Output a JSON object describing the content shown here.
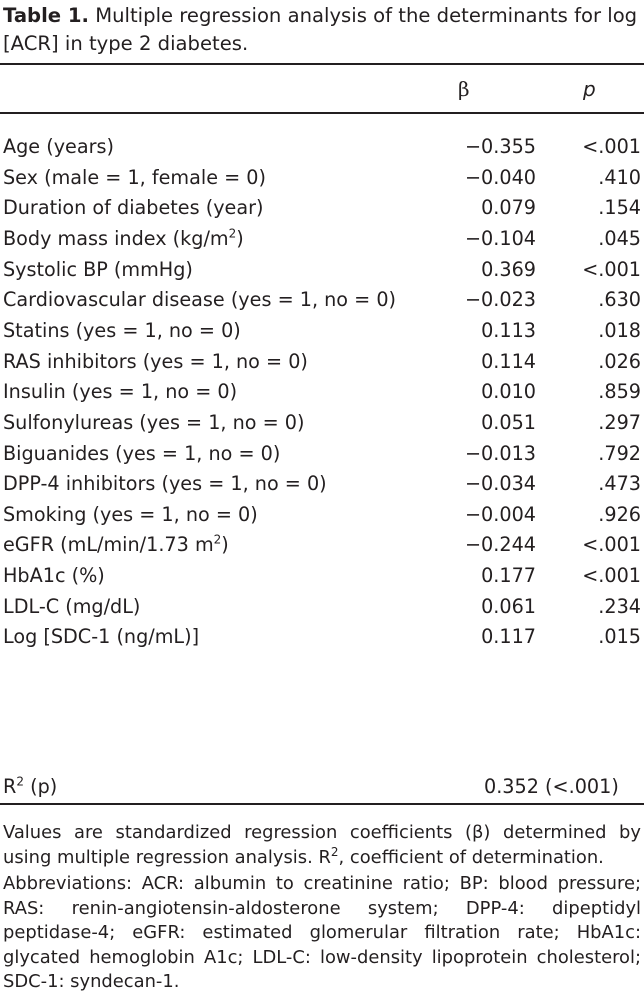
{
  "caption": {
    "label": "Table 1.",
    "text": "Multiple regression analysis of the determinants for log [ACR] in type 2 diabetes."
  },
  "header": {
    "beta": "β",
    "p": "p"
  },
  "rows": [
    {
      "variable": "Age (years)",
      "beta": "−0.355",
      "p": "<.001"
    },
    {
      "variable": "Sex (male = 1, female = 0)",
      "beta": "−0.040",
      "p": ".410"
    },
    {
      "variable": "Duration of diabetes (year)",
      "beta": "0.079",
      "p": ".154"
    },
    {
      "variable": "Body mass index (kg/m",
      "sup": "2",
      "tail": ")",
      "beta": "−0.104",
      "p": ".045"
    },
    {
      "variable": "Systolic BP (mmHg)",
      "beta": "0.369",
      "p": "<.001"
    },
    {
      "variable": "Cardiovascular disease (yes = 1, no = 0)",
      "beta": "−0.023",
      "p": ".630"
    },
    {
      "variable": "Statins (yes = 1, no = 0)",
      "beta": "0.113",
      "p": ".018"
    },
    {
      "variable": "RAS inhibitors (yes = 1, no = 0)",
      "beta": "0.114",
      "p": ".026"
    },
    {
      "variable": "Insulin (yes = 1, no = 0)",
      "beta": "0.010",
      "p": ".859"
    },
    {
      "variable": "Sulfonylureas (yes = 1, no = 0)",
      "beta": "0.051",
      "p": ".297"
    },
    {
      "variable": "Biguanides (yes = 1, no = 0)",
      "beta": "−0.013",
      "p": ".792"
    },
    {
      "variable": "DPP-4 inhibitors (yes = 1, no = 0)",
      "beta": "−0.034",
      "p": ".473"
    },
    {
      "variable": "Smoking (yes = 1, no = 0)",
      "beta": "−0.004",
      "p": ".926"
    },
    {
      "variable": "eGFR (mL/min/1.73 m",
      "sup": "2",
      "tail": ")",
      "beta": "−0.244",
      "p": "<.001"
    },
    {
      "variable": "HbA1c (%)",
      "beta": "0.177",
      "p": "<.001"
    },
    {
      "variable": "LDL-C (mg/dL)",
      "beta": "0.061",
      "p": ".234"
    },
    {
      "variable": "Log [SDC-1 (ng/mL)]",
      "beta": "0.117",
      "p": ".015"
    }
  ],
  "r2": {
    "label": "R",
    "sup": "2",
    "label_tail": " (p)",
    "value": "0.352 (<.001)"
  },
  "notes": {
    "values_pre": "Values are standardized regression coefficients (β) determined by using multiple regression analysis. R",
    "values_sup": "2",
    "values_post": ", coefficient of determination.",
    "abbreviations": "Abbreviations: ACR: albumin to creatinine ratio; BP: blood pressure; RAS: renin-angiotensin-aldosterone system; DPP-4: dipeptidyl peptidase-4; eGFR: estimated glomerular filtration rate; HbA1c: glycated hemoglobin A1c; LDL-C: low-density lipoprotein cholesterol; SDC-1: syndecan-1."
  }
}
